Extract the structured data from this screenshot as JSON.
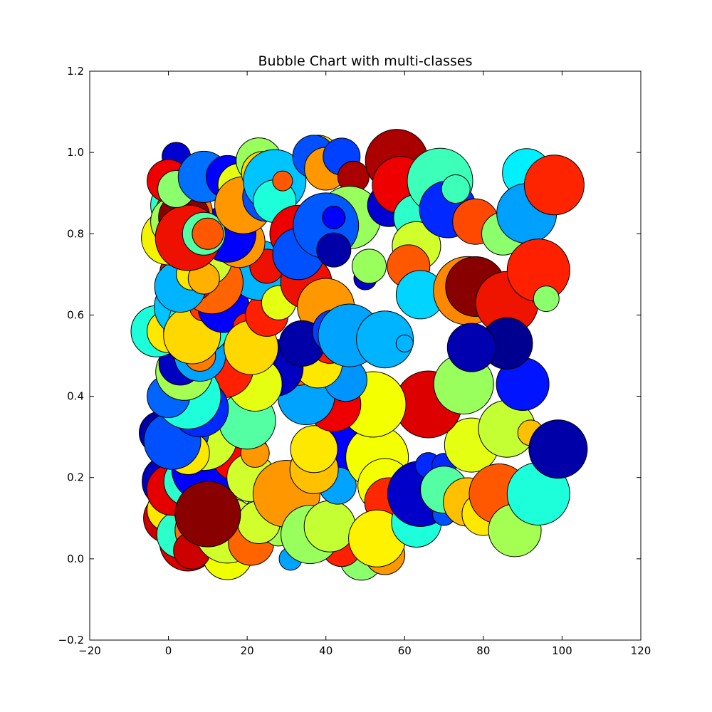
{
  "chart_data": {
    "type": "scatter",
    "title": "Bubble Chart with multi-classes",
    "xlabel": "",
    "ylabel": "",
    "xlim": [
      -20,
      120
    ],
    "ylim": [
      -0.2,
      1.2
    ],
    "xticks": [
      -20,
      0,
      20,
      40,
      60,
      80,
      100,
      120
    ],
    "yticks": [
      -0.2,
      0.0,
      0.2,
      0.4,
      0.6,
      0.8,
      1.0,
      1.2
    ],
    "xtick_labels": [
      "−20",
      "0",
      "20",
      "40",
      "60",
      "80",
      "100",
      "120"
    ],
    "ytick_labels": [
      "−0.2",
      "0.0",
      "0.2",
      "0.4",
      "0.6",
      "0.8",
      "1.0",
      "1.2"
    ],
    "grid": false,
    "colormap": "jet",
    "marker_edge_color": "#000000",
    "points": [
      {
        "x": 5,
        "y": 0.04,
        "r": 40,
        "color": "#dd0000"
      },
      {
        "x": 15,
        "y": 0.01,
        "r": 35,
        "color": "#f0ff00"
      },
      {
        "x": 49,
        "y": 0.0,
        "r": 30,
        "color": "#8cff6c"
      },
      {
        "x": 44,
        "y": 0.03,
        "r": 28,
        "color": "#ff2000"
      },
      {
        "x": 31,
        "y": 0.0,
        "r": 16,
        "color": "#00a4ff"
      },
      {
        "x": 55,
        "y": 0.01,
        "r": 28,
        "color": "#ff9800"
      },
      {
        "x": 0,
        "y": 0.1,
        "r": 35,
        "color": "#cc0000"
      },
      {
        "x": 3,
        "y": 0.12,
        "r": 32,
        "color": "#f4f400"
      },
      {
        "x": 0,
        "y": 0.12,
        "r": 30,
        "color": "#ffe800"
      },
      {
        "x": 3,
        "y": 0.06,
        "r": 33,
        "color": "#2cffca"
      },
      {
        "x": 8,
        "y": 0.07,
        "r": 35,
        "color": "#ff7000"
      },
      {
        "x": 8,
        "y": 0.12,
        "r": 36,
        "color": "#0000ff"
      },
      {
        "x": 6,
        "y": 0.02,
        "r": 26,
        "color": "#cc0000"
      },
      {
        "x": 15,
        "y": 0.07,
        "r": 46,
        "color": "#d0ff2c"
      },
      {
        "x": 21,
        "y": 0.04,
        "r": 32,
        "color": "#ff6400"
      },
      {
        "x": 25,
        "y": 0.1,
        "r": 34,
        "color": "#d0ff2c"
      },
      {
        "x": 28,
        "y": 0.07,
        "r": 22,
        "color": "#a4ff52"
      },
      {
        "x": 0,
        "y": 0.19,
        "r": 37,
        "color": "#0000c0"
      },
      {
        "x": 1,
        "y": 0.17,
        "r": 36,
        "color": "#e40000"
      },
      {
        "x": 5,
        "y": 0.19,
        "r": 34,
        "color": "#2cffca"
      },
      {
        "x": 9,
        "y": 0.22,
        "r": 45,
        "color": "#0000ff"
      },
      {
        "x": 18,
        "y": 0.26,
        "r": 40,
        "color": "#ff0000"
      },
      {
        "x": 21,
        "y": 0.2,
        "r": 34,
        "color": "#d0ff2c"
      },
      {
        "x": 23,
        "y": 0.09,
        "r": 30,
        "color": "#d0ff2c"
      },
      {
        "x": 30,
        "y": 0.16,
        "r": 47,
        "color": "#ff9800"
      },
      {
        "x": 36,
        "y": 0.06,
        "r": 41,
        "color": "#98ff5c"
      },
      {
        "x": 41,
        "y": 0.08,
        "r": 36,
        "color": "#c4ff34"
      },
      {
        "x": 43,
        "y": 0.26,
        "r": 42,
        "color": "#0000ff"
      },
      {
        "x": 43,
        "y": 0.18,
        "r": 26,
        "color": "#00a4ff"
      },
      {
        "x": 37,
        "y": 0.22,
        "r": 34,
        "color": "#ffc000"
      },
      {
        "x": 37,
        "y": 0.27,
        "r": 33,
        "color": "#ffe800"
      },
      {
        "x": 22,
        "y": 0.26,
        "r": 20,
        "color": "#ff9800"
      },
      {
        "x": 10,
        "y": 0.11,
        "r": 46,
        "color": "#880000"
      },
      {
        "x": 9,
        "y": 0.3,
        "r": 47,
        "color": "#d0ff2c"
      },
      {
        "x": 20,
        "y": 0.34,
        "r": 40,
        "color": "#54ffa4"
      },
      {
        "x": 3,
        "y": 0.31,
        "r": 40,
        "color": "#0050ff"
      },
      {
        "x": -2,
        "y": 0.31,
        "r": 30,
        "color": "#0000a8"
      },
      {
        "x": 5,
        "y": 0.26,
        "r": 30,
        "color": "#ffe800"
      },
      {
        "x": 1,
        "y": 0.29,
        "r": 40,
        "color": "#0050ff"
      },
      {
        "x": 53,
        "y": 0.25,
        "r": 44,
        "color": "#f4ff00"
      },
      {
        "x": 55,
        "y": 0.18,
        "r": 38,
        "color": "#f4ff00"
      },
      {
        "x": 56,
        "y": 0.14,
        "r": 34,
        "color": "#ff2800"
      },
      {
        "x": 53,
        "y": 0.05,
        "r": 40,
        "color": "#fff200"
      },
      {
        "x": 63,
        "y": 0.09,
        "r": 35,
        "color": "#1cffda"
      },
      {
        "x": 64,
        "y": 0.16,
        "r": 46,
        "color": "#0000c8"
      },
      {
        "x": 66,
        "y": 0.23,
        "r": 18,
        "color": "#0028ff"
      },
      {
        "x": 70,
        "y": 0.11,
        "r": 16,
        "color": "#0050ff"
      },
      {
        "x": 70,
        "y": 0.23,
        "r": 17,
        "color": "#0028ff"
      },
      {
        "x": 70,
        "y": 0.17,
        "r": 33,
        "color": "#54ffa4"
      },
      {
        "x": 76,
        "y": 0.14,
        "r": 34,
        "color": "#ffc000"
      },
      {
        "x": 77,
        "y": 0.28,
        "r": 38,
        "color": "#e4ff12"
      },
      {
        "x": 80,
        "y": 0.11,
        "r": 30,
        "color": "#ffe800"
      },
      {
        "x": 84,
        "y": 0.16,
        "r": 42,
        "color": "#ff5800"
      },
      {
        "x": 88,
        "y": 0.07,
        "r": 37,
        "color": "#a4ff52"
      },
      {
        "x": 94,
        "y": 0.16,
        "r": 44,
        "color": "#1cffda"
      },
      {
        "x": 86,
        "y": 0.32,
        "r": 40,
        "color": "#c4ff34"
      },
      {
        "x": 92,
        "y": 0.31,
        "r": 18,
        "color": "#ffc000"
      },
      {
        "x": 99,
        "y": 0.27,
        "r": 41,
        "color": "#0000a8"
      },
      {
        "x": 90,
        "y": 0.43,
        "r": 37,
        "color": "#0014ff"
      },
      {
        "x": 66,
        "y": 0.38,
        "r": 47,
        "color": "#dc0000"
      },
      {
        "x": 75,
        "y": 0.43,
        "r": 42,
        "color": "#98ff5c"
      },
      {
        "x": 52,
        "y": 0.38,
        "r": 46,
        "color": "#f4ff00"
      },
      {
        "x": 42,
        "y": 0.38,
        "r": 38,
        "color": "#ee0000"
      },
      {
        "x": 35,
        "y": 0.4,
        "r": 40,
        "color": "#00a4ff"
      },
      {
        "x": 33,
        "y": 0.49,
        "r": 36,
        "color": "#ff6400"
      },
      {
        "x": 45,
        "y": 0.44,
        "r": 30,
        "color": "#0094ff"
      },
      {
        "x": 38,
        "y": 0.48,
        "r": 34,
        "color": "#ffe800"
      },
      {
        "x": 27,
        "y": 0.47,
        "r": 40,
        "color": "#0000c0"
      },
      {
        "x": 22,
        "y": 0.43,
        "r": 38,
        "color": "#e4ff12"
      },
      {
        "x": 14,
        "y": 0.47,
        "r": 42,
        "color": "#ff2000"
      },
      {
        "x": 8,
        "y": 0.37,
        "r": 40,
        "color": "#0028ff"
      },
      {
        "x": 5,
        "y": 0.4,
        "r": 46,
        "color": "#1cffda"
      },
      {
        "x": 0,
        "y": 0.4,
        "r": 30,
        "color": "#0064ff"
      },
      {
        "x": 4,
        "y": 0.46,
        "r": 40,
        "color": "#a4ff52"
      },
      {
        "x": 3,
        "y": 0.48,
        "r": 30,
        "color": "#0000c0"
      },
      {
        "x": 8,
        "y": 0.5,
        "r": 36,
        "color": "#00a4ff"
      },
      {
        "x": 8,
        "y": 0.5,
        "r": 22,
        "color": "#ff7a00"
      },
      {
        "x": -3,
        "y": 0.56,
        "r": 36,
        "color": "#1cffda"
      },
      {
        "x": 0,
        "y": 0.56,
        "r": 30,
        "color": "#ffe800"
      },
      {
        "x": 6,
        "y": 0.56,
        "r": 40,
        "color": "#0000ff"
      },
      {
        "x": 4,
        "y": 0.62,
        "r": 42,
        "color": "#00c4ff"
      },
      {
        "x": 8,
        "y": 0.58,
        "r": 44,
        "color": "#1cffda"
      },
      {
        "x": 6,
        "y": 0.55,
        "r": 40,
        "color": "#ffd800"
      },
      {
        "x": 9,
        "y": 0.62,
        "r": 20,
        "color": "#ff3800"
      },
      {
        "x": 14,
        "y": 0.62,
        "r": 36,
        "color": "#0000ff"
      },
      {
        "x": 20,
        "y": 0.57,
        "r": 20,
        "color": "#ff2000"
      },
      {
        "x": 21,
        "y": 0.52,
        "r": 38,
        "color": "#ffd800"
      },
      {
        "x": 25,
        "y": 0.6,
        "r": 30,
        "color": "#ff2000"
      },
      {
        "x": 28,
        "y": 0.7,
        "r": 40,
        "color": "#00b4ff"
      },
      {
        "x": 23,
        "y": 0.71,
        "r": 42,
        "color": "#00b4ff"
      },
      {
        "x": 25,
        "y": 0.72,
        "r": 24,
        "color": "#ee1000"
      },
      {
        "x": 28,
        "y": 0.63,
        "r": 24,
        "color": "#e4ff12"
      },
      {
        "x": 35,
        "y": 0.68,
        "r": 36,
        "color": "#ee1000"
      },
      {
        "x": 40,
        "y": 0.62,
        "r": 40,
        "color": "#ff9800"
      },
      {
        "x": 41,
        "y": 0.53,
        "r": 28,
        "color": "#ff1800"
      },
      {
        "x": 34,
        "y": 0.53,
        "r": 32,
        "color": "#0000a8"
      },
      {
        "x": 42,
        "y": 0.56,
        "r": 30,
        "color": "#0040ff"
      },
      {
        "x": 46,
        "y": 0.55,
        "r": 44,
        "color": "#00a4ff"
      },
      {
        "x": 55,
        "y": 0.54,
        "r": 40,
        "color": "#00b4ff"
      },
      {
        "x": 60,
        "y": 0.53,
        "r": 12,
        "color": "#00b4ff"
      },
      {
        "x": 11,
        "y": 0.68,
        "r": 44,
        "color": "#ff6400"
      },
      {
        "x": 5,
        "y": 0.7,
        "r": 40,
        "color": "#e41000"
      },
      {
        "x": 3,
        "y": 0.67,
        "r": 36,
        "color": "#00b4ff"
      },
      {
        "x": 9,
        "y": 0.74,
        "r": 40,
        "color": "#d0ff2c"
      },
      {
        "x": 6,
        "y": 0.7,
        "r": 22,
        "color": "#ffe800"
      },
      {
        "x": 9,
        "y": 0.69,
        "r": 22,
        "color": "#ffb000"
      },
      {
        "x": 18,
        "y": 0.78,
        "r": 36,
        "color": "#ff9800"
      },
      {
        "x": 15,
        "y": 0.8,
        "r": 40,
        "color": "#0000ff"
      },
      {
        "x": 0,
        "y": 0.79,
        "r": 38,
        "color": "#f4f400"
      },
      {
        "x": 2,
        "y": 0.87,
        "r": 36,
        "color": "#2cffca"
      },
      {
        "x": 4,
        "y": 0.85,
        "r": 40,
        "color": "#ff7800"
      },
      {
        "x": 2,
        "y": 0.83,
        "r": 36,
        "color": "#a4ff52"
      },
      {
        "x": 4,
        "y": 0.84,
        "r": 36,
        "color": "#880000"
      },
      {
        "x": 5,
        "y": 0.79,
        "r": 46,
        "color": "#ee1000"
      },
      {
        "x": 9,
        "y": 0.8,
        "r": 30,
        "color": "#54ffa4"
      },
      {
        "x": 10,
        "y": 0.8,
        "r": 22,
        "color": "#ff5800"
      },
      {
        "x": 2,
        "y": 0.99,
        "r": 20,
        "color": "#0000d0"
      },
      {
        "x": 0,
        "y": 0.93,
        "r": 30,
        "color": "#ee0000"
      },
      {
        "x": 2,
        "y": 0.91,
        "r": 26,
        "color": "#8cff6c"
      },
      {
        "x": 9,
        "y": 0.94,
        "r": 36,
        "color": "#0070ff"
      },
      {
        "x": 15,
        "y": 0.94,
        "r": 30,
        "color": "#0000ff"
      },
      {
        "x": 18,
        "y": 0.92,
        "r": 30,
        "color": "#e4ff12"
      },
      {
        "x": 19,
        "y": 0.87,
        "r": 40,
        "color": "#ff9800"
      },
      {
        "x": 23,
        "y": 0.98,
        "r": 32,
        "color": "#98ff5c"
      },
      {
        "x": 24,
        "y": 0.95,
        "r": 30,
        "color": "#ffd800"
      },
      {
        "x": 25,
        "y": 0.89,
        "r": 34,
        "color": "#0050ff"
      },
      {
        "x": 27,
        "y": 0.93,
        "r": 44,
        "color": "#00c4ff"
      },
      {
        "x": 27,
        "y": 0.88,
        "r": 30,
        "color": "#1cffda"
      },
      {
        "x": 29,
        "y": 0.93,
        "r": 14,
        "color": "#ff5800"
      },
      {
        "x": 33,
        "y": 0.8,
        "r": 40,
        "color": "#ee0000"
      },
      {
        "x": 33,
        "y": 0.75,
        "r": 36,
        "color": "#0050ff"
      },
      {
        "x": 38,
        "y": 0.99,
        "r": 30,
        "color": "#ffe800"
      },
      {
        "x": 37,
        "y": 0.99,
        "r": 30,
        "color": "#0050ff"
      },
      {
        "x": 40,
        "y": 0.96,
        "r": 30,
        "color": "#ff9800"
      },
      {
        "x": 44,
        "y": 0.99,
        "r": 26,
        "color": "#0040ff"
      },
      {
        "x": 47,
        "y": 0.94,
        "r": 22,
        "color": "#aa0000"
      },
      {
        "x": 46,
        "y": 0.84,
        "r": 44,
        "color": "#98ff5c"
      },
      {
        "x": 40,
        "y": 0.82,
        "r": 46,
        "color": "#0058ff"
      },
      {
        "x": 42,
        "y": 0.84,
        "r": 16,
        "color": "#0000ff"
      },
      {
        "x": 42,
        "y": 0.76,
        "r": 24,
        "color": "#0000a8"
      },
      {
        "x": 50,
        "y": 0.69,
        "r": 16,
        "color": "#0000c8"
      },
      {
        "x": 51,
        "y": 0.72,
        "r": 24,
        "color": "#98ff5c"
      },
      {
        "x": 56,
        "y": 0.87,
        "r": 30,
        "color": "#0000d0"
      },
      {
        "x": 58,
        "y": 0.98,
        "r": 44,
        "color": "#aa0000"
      },
      {
        "x": 59,
        "y": 0.92,
        "r": 40,
        "color": "#ee0000"
      },
      {
        "x": 63,
        "y": 0.84,
        "r": 32,
        "color": "#2cffca"
      },
      {
        "x": 63,
        "y": 0.77,
        "r": 34,
        "color": "#d0ff2c"
      },
      {
        "x": 61,
        "y": 0.72,
        "r": 30,
        "color": "#ff5800"
      },
      {
        "x": 64,
        "y": 0.65,
        "r": 34,
        "color": "#00d4ff"
      },
      {
        "x": 69,
        "y": 0.93,
        "r": 46,
        "color": "#3cffba"
      },
      {
        "x": 71,
        "y": 0.86,
        "r": 40,
        "color": "#0028ff"
      },
      {
        "x": 73,
        "y": 0.91,
        "r": 20,
        "color": "#3cffba"
      },
      {
        "x": 78,
        "y": 0.83,
        "r": 32,
        "color": "#ff4800"
      },
      {
        "x": 76,
        "y": 0.66,
        "r": 48,
        "color": "#ff8800"
      },
      {
        "x": 78,
        "y": 0.67,
        "r": 42,
        "color": "#880000"
      },
      {
        "x": 86,
        "y": 0.63,
        "r": 44,
        "color": "#ee1400"
      },
      {
        "x": 86,
        "y": 0.53,
        "r": 36,
        "color": "#000090"
      },
      {
        "x": 77,
        "y": 0.52,
        "r": 34,
        "color": "#0000b0"
      },
      {
        "x": 85,
        "y": 0.8,
        "r": 30,
        "color": "#8cff6c"
      },
      {
        "x": 91,
        "y": 0.95,
        "r": 34,
        "color": "#00f0ff"
      },
      {
        "x": 91,
        "y": 0.85,
        "r": 42,
        "color": "#00a0ff"
      },
      {
        "x": 98,
        "y": 0.92,
        "r": 42,
        "color": "#ff2400"
      },
      {
        "x": 94,
        "y": 0.71,
        "r": 44,
        "color": "#ff2000"
      },
      {
        "x": 96,
        "y": 0.64,
        "r": 18,
        "color": "#8cff6c"
      }
    ]
  }
}
